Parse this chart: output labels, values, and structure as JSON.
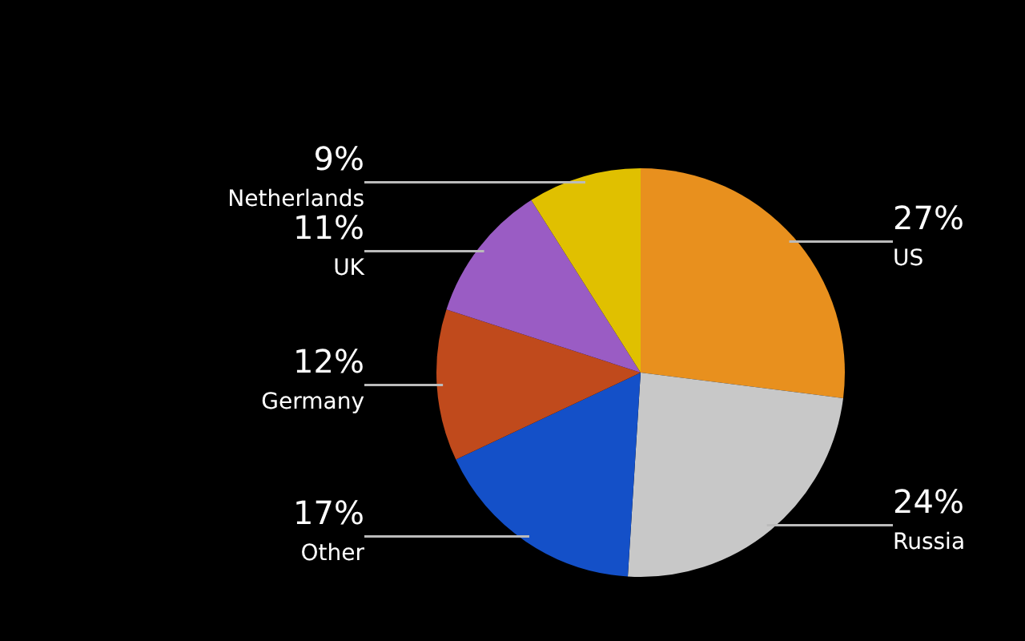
{
  "chart_data": {
    "type": "pie",
    "categories": [
      "US",
      "Russia",
      "Other",
      "Germany",
      "UK",
      "Netherlands"
    ],
    "values": [
      27,
      24,
      17,
      12,
      11,
      9
    ],
    "value_labels": [
      "27%",
      "24%",
      "17%",
      "12%",
      "11%",
      "9%"
    ],
    "colors": [
      "#e8901e",
      "#c8c8c8",
      "#1450c8",
      "#c04a1c",
      "#9a5cc4",
      "#e0c000"
    ],
    "legend": false
  }
}
